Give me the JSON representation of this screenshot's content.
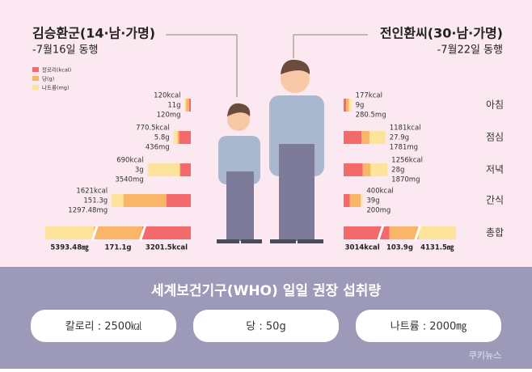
{
  "chart_data": {
    "type": "diverging-stacked-bar",
    "categories": [
      "아침",
      "점심",
      "저녁",
      "간식",
      "총합"
    ],
    "series": [
      {
        "name": "칼로리(kcal)",
        "color": "#f26a6b"
      },
      {
        "name": "당(g)",
        "color": "#f9b668"
      },
      {
        "name": "나트륨(mg)",
        "color": "#fde49c"
      }
    ],
    "panels": [
      {
        "title": "김승환군(14·남·가명)",
        "subtitle": "-7월16일 동행",
        "series": [
          {
            "values": [
              120,
              770.5,
              690,
              1621,
              3201.5
            ],
            "value_labels": [
              "120kcal",
              "770.5kcal",
              "690kcal",
              "1621kcal",
              "3201.5kcal"
            ]
          },
          {
            "values": [
              11,
              5.8,
              3,
              151.3,
              171.1
            ],
            "value_labels": [
              "11g",
              "5.8g",
              "3g",
              "151.3g",
              "171.1g"
            ]
          },
          {
            "values": [
              120,
              436,
              3540,
              1297.48,
              5393.48
            ],
            "value_labels": [
              "120mg",
              "436mg",
              "3540mg",
              "1297.48mg",
              "5393.48㎎"
            ]
          }
        ]
      },
      {
        "title": "전인환씨(30·남·가명)",
        "subtitle": "-7월22일 동행",
        "series": [
          {
            "values": [
              177,
              1181,
              1256,
              400,
              3014
            ],
            "value_labels": [
              "177kcal",
              "1181kcal",
              "1256kcal",
              "400kcal",
              "3014kcal"
            ]
          },
          {
            "values": [
              9,
              27.9,
              28,
              39,
              103.9
            ],
            "value_labels": [
              "9g",
              "27.9g",
              "28g",
              "39g",
              "103.9g"
            ]
          },
          {
            "values": [
              280.5,
              1781,
              1870,
              200,
              4131.5
            ],
            "value_labels": [
              "280.5mg",
              "1781mg",
              "1870mg",
              "200mg",
              "4131.5㎎"
            ]
          }
        ]
      }
    ],
    "recommendation_title": "세계보건기구(WHO) 일일 권장 섭취량",
    "recommendations": [
      "칼로리 : 2500㎉",
      "당 : 50g",
      "나트륨 : 2000㎎"
    ],
    "source": "쿠키뉴스"
  }
}
